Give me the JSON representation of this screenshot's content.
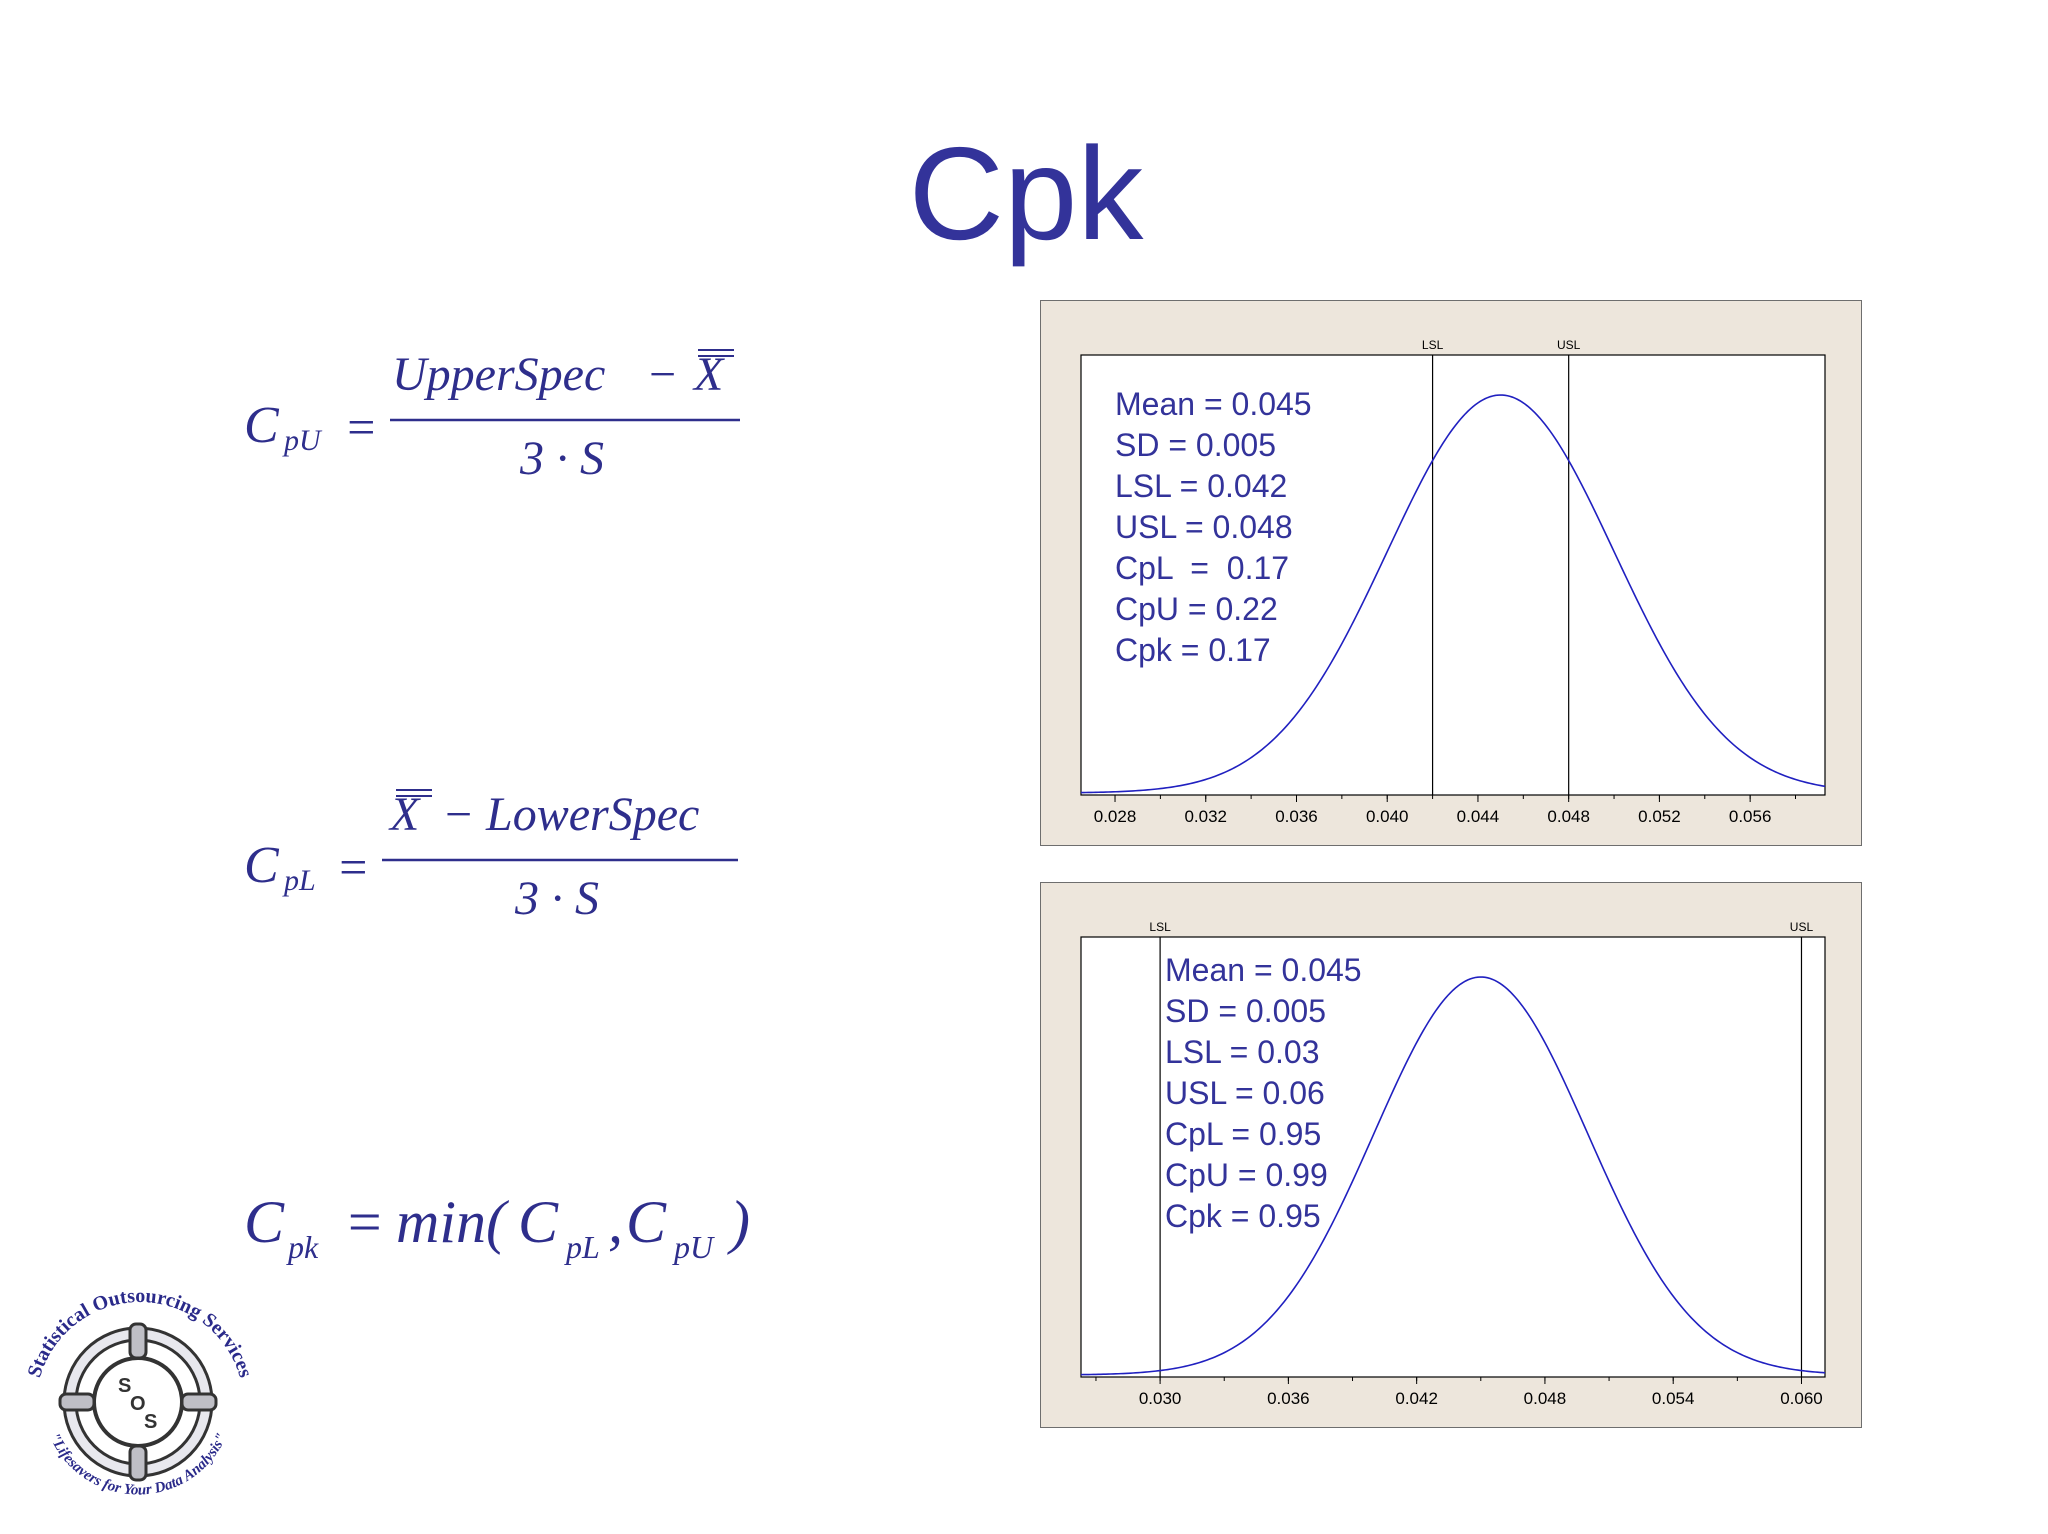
{
  "slide": {
    "title": "Cpk"
  },
  "formulas": {
    "cpu": {
      "lhs_main": "C",
      "lhs_sub": "pU",
      "equals": "=",
      "numerator_left": "UpperSpec",
      "numerator_op": "−",
      "numerator_right": "X",
      "denominator": "3 · S"
    },
    "cpl": {
      "lhs_main": "C",
      "lhs_sub": "pL",
      "equals": "=",
      "numerator_left": "X",
      "numerator_op": "−",
      "numerator_right": "LowerSpec",
      "denominator": "3 · S"
    },
    "cpk": {
      "lhs_main": "C",
      "lhs_sub": "pk",
      "equals": "=",
      "func": "min(",
      "arg1_main": "C",
      "arg1_sub": "pL",
      "comma": ",",
      "arg2_main": "C",
      "arg2_sub": "pU",
      "close": ")"
    }
  },
  "logo": {
    "top_text": "Statistical Outsourcing Services",
    "bottom_text": "\"Lifesavers for Your Data Analysis\"",
    "center_text": [
      "S",
      "O",
      "S"
    ]
  },
  "colors": {
    "text": "#33339a",
    "curve": "#2020c0",
    "panel": "#ede6dc",
    "axis": "#000000"
  },
  "chart_data": [
    {
      "type": "line",
      "series": [
        {
          "distribution": "normal",
          "mean": 0.045,
          "sd": 0.005
        }
      ],
      "xlim": [
        0.0265,
        0.0593
      ],
      "x_ticks": [
        0.028,
        0.032,
        0.036,
        0.04,
        0.044,
        0.048,
        0.052,
        0.056
      ],
      "x_tick_labels": [
        "0.028",
        "0.032",
        "0.036",
        "0.040",
        "0.044",
        "0.048",
        "0.052",
        "0.056"
      ],
      "reference_lines": [
        {
          "label": "LSL",
          "value": 0.042
        },
        {
          "label": "USL",
          "value": 0.048
        }
      ],
      "annotations": [
        "Mean = 0.045",
        "SD = 0.005",
        "LSL = 0.042",
        "USL = 0.048",
        "CpL  =  0.17",
        "CpU = 0.22",
        "Cpk = 0.17"
      ]
    },
    {
      "type": "line",
      "series": [
        {
          "distribution": "normal",
          "mean": 0.045,
          "sd": 0.005
        }
      ],
      "xlim": [
        0.0263,
        0.0611
      ],
      "x_ticks": [
        0.03,
        0.036,
        0.042,
        0.048,
        0.054,
        0.06
      ],
      "x_tick_labels": [
        "0.030",
        "0.036",
        "0.042",
        "0.048",
        "0.054",
        "0.060"
      ],
      "reference_lines": [
        {
          "label": "LSL",
          "value": 0.03
        },
        {
          "label": "USL",
          "value": 0.06
        }
      ],
      "annotations": [
        "Mean = 0.045",
        "SD = 0.005",
        "LSL = 0.03",
        "USL = 0.06",
        "CpL = 0.95",
        "CpU = 0.99",
        "Cpk = 0.95"
      ]
    }
  ]
}
